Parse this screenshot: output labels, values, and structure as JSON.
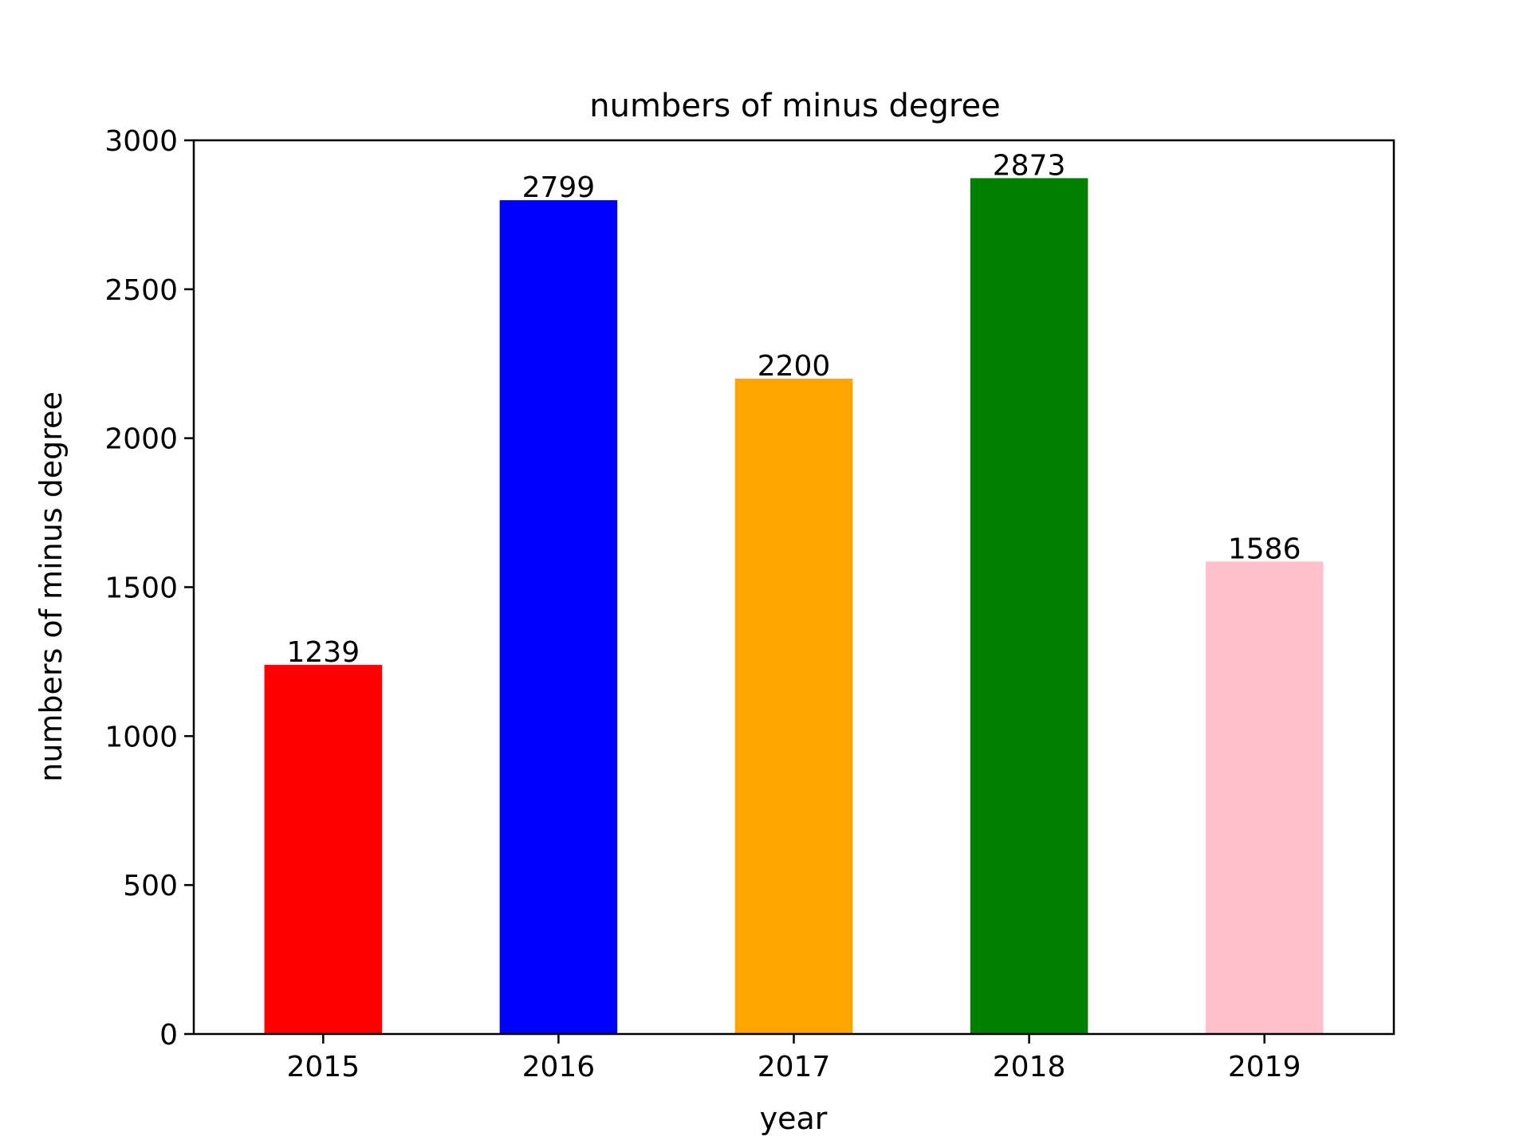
{
  "chart_data": {
    "type": "bar",
    "title": "numbers of minus degree",
    "xlabel": "year",
    "ylabel": "numbers of minus degree",
    "categories": [
      "2015",
      "2016",
      "2017",
      "2018",
      "2019"
    ],
    "values": [
      1239,
      2799,
      2200,
      2873,
      1586
    ],
    "data_labels": [
      "1239",
      "2799",
      "2200",
      "2873",
      "1586"
    ],
    "colors": [
      "#ff0000",
      "#0000ff",
      "#ffa500",
      "#008000",
      "#ffc0cb"
    ],
    "ylim": [
      0,
      3000
    ],
    "yticks": [
      0,
      500,
      1000,
      1500,
      2000,
      2500,
      3000
    ],
    "ytick_labels": [
      "0",
      "500",
      "1000",
      "1500",
      "2000",
      "2500",
      "3000"
    ],
    "grid": false,
    "legend": false
  }
}
